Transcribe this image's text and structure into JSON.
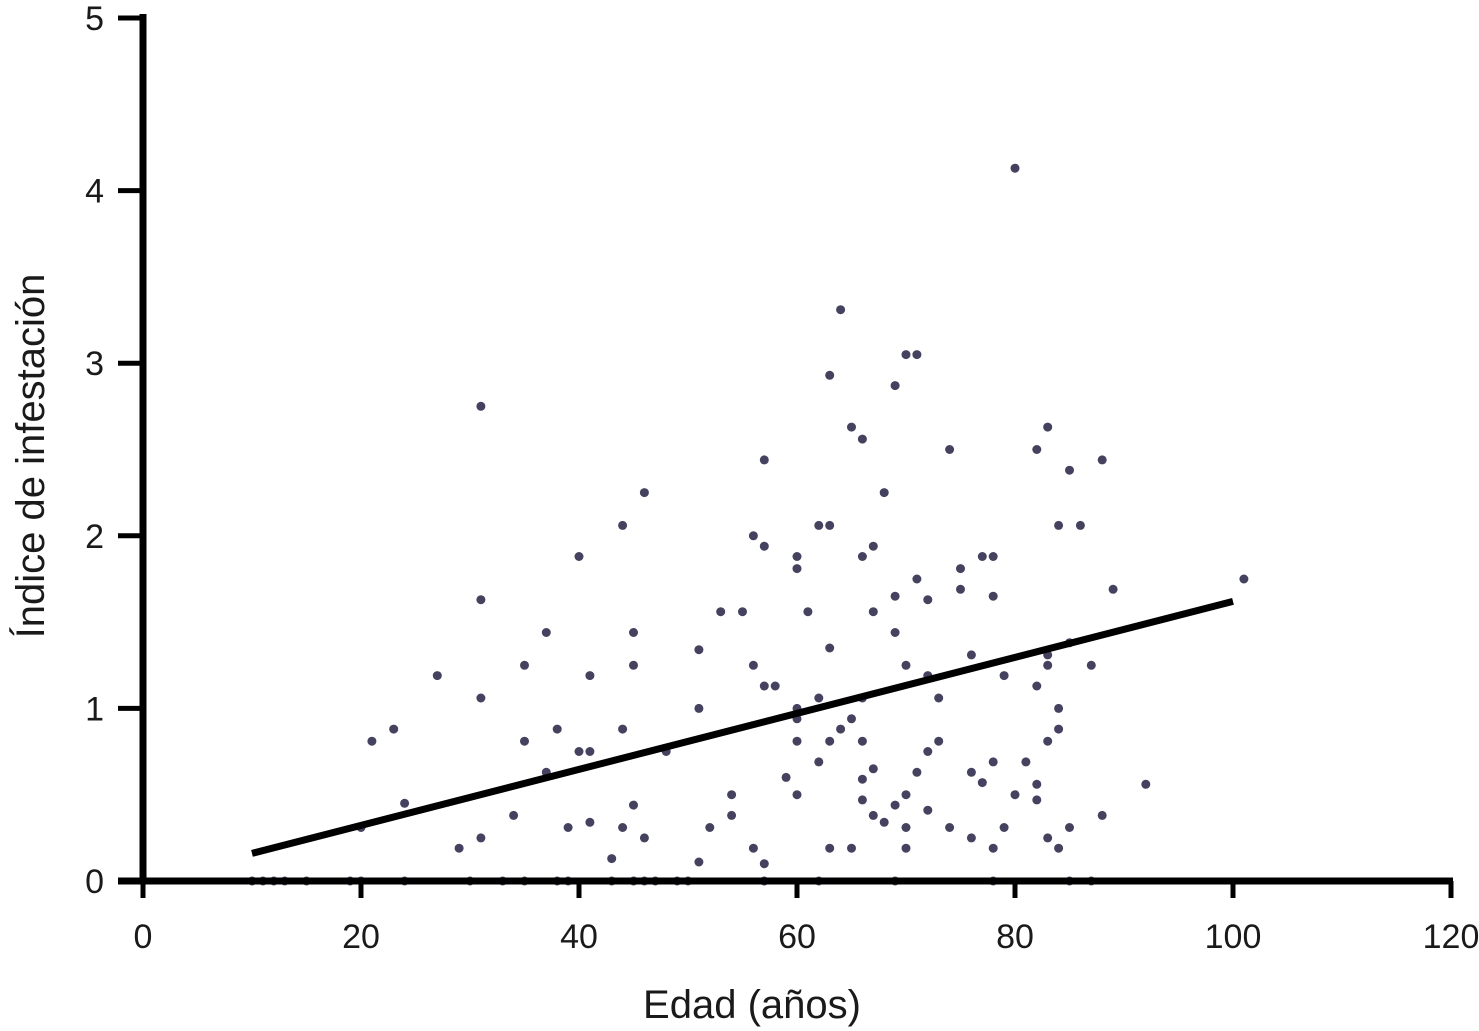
{
  "chart_data": {
    "type": "scatter",
    "title": "",
    "xlabel": "Edad (años)",
    "ylabel": "Índice de infestación",
    "xlim": [
      0,
      120
    ],
    "ylim": [
      0,
      5
    ],
    "xticks": [
      0,
      20,
      40,
      60,
      80,
      100,
      120
    ],
    "yticks": [
      0,
      1,
      2,
      3,
      4,
      5
    ],
    "xtick_labels": [
      "0",
      "20",
      "40",
      "60",
      "80",
      "100",
      "120"
    ],
    "ytick_labels": [
      "0",
      "1",
      "2",
      "3",
      "4",
      "5"
    ],
    "grid": false,
    "legend": "none",
    "colors": {
      "points": "#45425f",
      "trend": "#000000",
      "axes": "#000000"
    },
    "trend_line": {
      "x": [
        10,
        100
      ],
      "y": [
        0.16,
        1.62
      ]
    },
    "points": [
      [
        80,
        4.13
      ],
      [
        64,
        3.31
      ],
      [
        70,
        3.05
      ],
      [
        71,
        3.05
      ],
      [
        63,
        2.93
      ],
      [
        69,
        2.87
      ],
      [
        31,
        2.75
      ],
      [
        65,
        2.63
      ],
      [
        83,
        2.63
      ],
      [
        66,
        2.56
      ],
      [
        74,
        2.5
      ],
      [
        82,
        2.5
      ],
      [
        57,
        2.44
      ],
      [
        88,
        2.44
      ],
      [
        85,
        2.38
      ],
      [
        46,
        2.25
      ],
      [
        68,
        2.25
      ],
      [
        44,
        2.06
      ],
      [
        62,
        2.06
      ],
      [
        63,
        2.06
      ],
      [
        84,
        2.06
      ],
      [
        86,
        2.06
      ],
      [
        56,
        2.0
      ],
      [
        57,
        1.94
      ],
      [
        67,
        1.94
      ],
      [
        40,
        1.88
      ],
      [
        60,
        1.88
      ],
      [
        66,
        1.88
      ],
      [
        77,
        1.88
      ],
      [
        78,
        1.88
      ],
      [
        60,
        1.81
      ],
      [
        75,
        1.81
      ],
      [
        71,
        1.75
      ],
      [
        101,
        1.75
      ],
      [
        75,
        1.69
      ],
      [
        89,
        1.69
      ],
      [
        69,
        1.65
      ],
      [
        78,
        1.65
      ],
      [
        31,
        1.63
      ],
      [
        72,
        1.63
      ],
      [
        53,
        1.56
      ],
      [
        55,
        1.56
      ],
      [
        61,
        1.56
      ],
      [
        67,
        1.56
      ],
      [
        37,
        1.44
      ],
      [
        45,
        1.44
      ],
      [
        69,
        1.44
      ],
      [
        85,
        1.38
      ],
      [
        63,
        1.35
      ],
      [
        51,
        1.34
      ],
      [
        76,
        1.31
      ],
      [
        83,
        1.31
      ],
      [
        35,
        1.25
      ],
      [
        45,
        1.25
      ],
      [
        56,
        1.25
      ],
      [
        70,
        1.25
      ],
      [
        83,
        1.25
      ],
      [
        87,
        1.25
      ],
      [
        27,
        1.19
      ],
      [
        41,
        1.19
      ],
      [
        72,
        1.19
      ],
      [
        79,
        1.19
      ],
      [
        57,
        1.13
      ],
      [
        58,
        1.13
      ],
      [
        82,
        1.13
      ],
      [
        31,
        1.06
      ],
      [
        62,
        1.06
      ],
      [
        66,
        1.06
      ],
      [
        73,
        1.06
      ],
      [
        51,
        1.0
      ],
      [
        60,
        1.0
      ],
      [
        84,
        1.0
      ],
      [
        60,
        0.94
      ],
      [
        65,
        0.94
      ],
      [
        38,
        0.88
      ],
      [
        23,
        0.88
      ],
      [
        44,
        0.88
      ],
      [
        64,
        0.88
      ],
      [
        84,
        0.88
      ],
      [
        21,
        0.81
      ],
      [
        35,
        0.81
      ],
      [
        60,
        0.81
      ],
      [
        63,
        0.81
      ],
      [
        66,
        0.81
      ],
      [
        73,
        0.81
      ],
      [
        83,
        0.81
      ],
      [
        40,
        0.75
      ],
      [
        41,
        0.75
      ],
      [
        48,
        0.75
      ],
      [
        72,
        0.75
      ],
      [
        62,
        0.69
      ],
      [
        78,
        0.69
      ],
      [
        81,
        0.69
      ],
      [
        67,
        0.65
      ],
      [
        37,
        0.63
      ],
      [
        71,
        0.63
      ],
      [
        76,
        0.63
      ],
      [
        59,
        0.6
      ],
      [
        66,
        0.59
      ],
      [
        77,
        0.57
      ],
      [
        82,
        0.56
      ],
      [
        92,
        0.56
      ],
      [
        54,
        0.5
      ],
      [
        60,
        0.5
      ],
      [
        70,
        0.5
      ],
      [
        80,
        0.5
      ],
      [
        66,
        0.47
      ],
      [
        82,
        0.47
      ],
      [
        24,
        0.45
      ],
      [
        45,
        0.44
      ],
      [
        69,
        0.44
      ],
      [
        72,
        0.41
      ],
      [
        54,
        0.38
      ],
      [
        67,
        0.38
      ],
      [
        34,
        0.38
      ],
      [
        88,
        0.38
      ],
      [
        68,
        0.34
      ],
      [
        41,
        0.34
      ],
      [
        20,
        0.31
      ],
      [
        39,
        0.31
      ],
      [
        44,
        0.31
      ],
      [
        52,
        0.31
      ],
      [
        70,
        0.31
      ],
      [
        74,
        0.31
      ],
      [
        79,
        0.31
      ],
      [
        85,
        0.31
      ],
      [
        31,
        0.25
      ],
      [
        46,
        0.25
      ],
      [
        76,
        0.25
      ],
      [
        83,
        0.25
      ],
      [
        29,
        0.19
      ],
      [
        56,
        0.19
      ],
      [
        63,
        0.19
      ],
      [
        65,
        0.19
      ],
      [
        70,
        0.19
      ],
      [
        78,
        0.19
      ],
      [
        84,
        0.19
      ],
      [
        43,
        0.13
      ],
      [
        51,
        0.11
      ],
      [
        57,
        0.1
      ],
      [
        10,
        0
      ],
      [
        11,
        0
      ],
      [
        12,
        0
      ],
      [
        13,
        0
      ],
      [
        15,
        0
      ],
      [
        19,
        0
      ],
      [
        20,
        0
      ],
      [
        24,
        0
      ],
      [
        30,
        0
      ],
      [
        33,
        0
      ],
      [
        35,
        0
      ],
      [
        38,
        0
      ],
      [
        39,
        0
      ],
      [
        43,
        0
      ],
      [
        45,
        0
      ],
      [
        46,
        0
      ],
      [
        47,
        0
      ],
      [
        49,
        0
      ],
      [
        50,
        0
      ],
      [
        57,
        0
      ],
      [
        62,
        0
      ],
      [
        69,
        0
      ],
      [
        78,
        0
      ],
      [
        85,
        0
      ],
      [
        87,
        0
      ]
    ]
  }
}
